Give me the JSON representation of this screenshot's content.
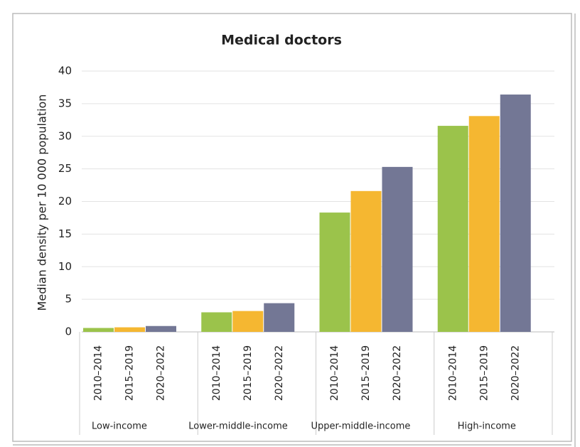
{
  "chart_data": {
    "type": "bar",
    "title": "Medical doctors",
    "y_label": "Median density per 10 000 population",
    "categories": [
      "Low-income",
      "Lower-middle-income",
      "Upper-middle-income",
      "High-income"
    ],
    "series": [
      {
        "name": "2010–2014",
        "color": "#9bc34b",
        "values": [
          0.6,
          3.0,
          18.3,
          31.6
        ]
      },
      {
        "name": "2015–2019",
        "color": "#f5b731",
        "values": [
          0.7,
          3.2,
          21.6,
          33.1
        ]
      },
      {
        "name": "2020–2022",
        "color": "#737795",
        "values": [
          0.9,
          4.4,
          25.3,
          36.4
        ]
      }
    ],
    "ylim": [
      0,
      40
    ],
    "yticks": [
      0,
      5,
      10,
      15,
      20,
      25,
      30,
      35,
      40
    ],
    "grid": true
  }
}
